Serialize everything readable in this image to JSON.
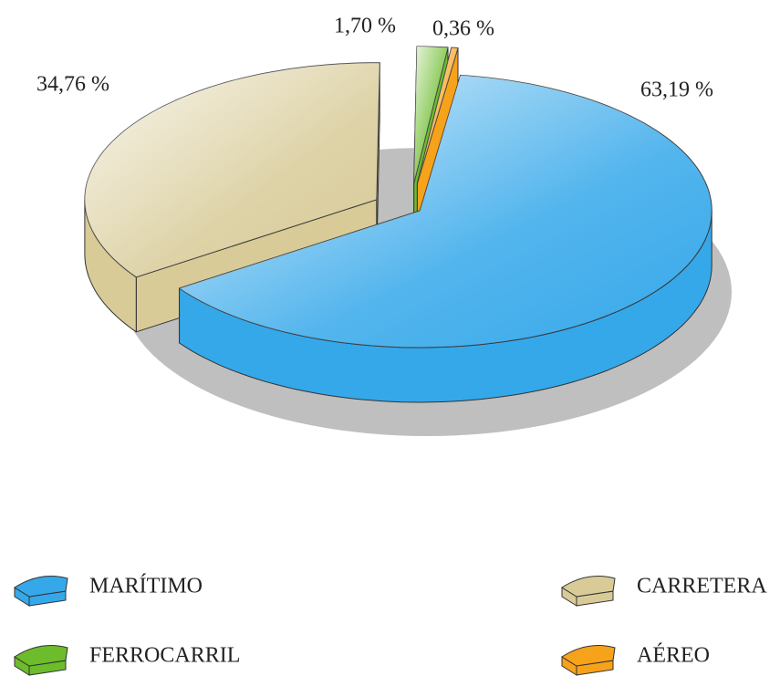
{
  "chart_data": {
    "type": "pie",
    "categories": [
      "MARÍTIMO",
      "CARRETERA",
      "FERROCARRIL",
      "AÉREO"
    ],
    "values": [
      63.19,
      34.76,
      1.7,
      0.36
    ],
    "value_labels": [
      "63,19 %",
      "34,76 %",
      "1,70 %",
      "0,36 %"
    ],
    "colors": [
      "#35a8ea",
      "#d8cb98",
      "#6cbc2c",
      "#f7a21b"
    ]
  }
}
